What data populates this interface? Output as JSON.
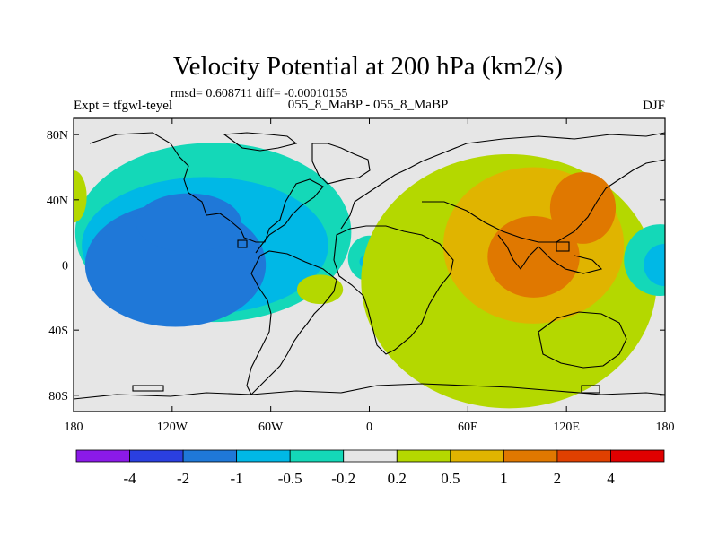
{
  "chart_data": {
    "type": "heatmap",
    "subtype": "filled-contour-map",
    "title": "Velocity Potential at 200 hPa (km2/s)",
    "stats_label": "rmsd= 0.608711 diff= -0.00010155",
    "experiment_label": "Expt = tfgwl-teyel",
    "comparison_label": "055_8_MaBP - 055_8_MaBP",
    "season_label": "DJF",
    "x_range": [
      -180,
      180
    ],
    "y_range": [
      -90,
      90
    ],
    "x_ticks": [
      {
        "value": -180,
        "label": "180"
      },
      {
        "value": -120,
        "label": "120W"
      },
      {
        "value": -60,
        "label": "60W"
      },
      {
        "value": 0,
        "label": "0"
      },
      {
        "value": 60,
        "label": "60E"
      },
      {
        "value": 120,
        "label": "120E"
      },
      {
        "value": 180,
        "label": "180"
      }
    ],
    "y_ticks": [
      {
        "value": 80,
        "label": "80N"
      },
      {
        "value": 40,
        "label": "40N"
      },
      {
        "value": 0,
        "label": "0"
      },
      {
        "value": -40,
        "label": "40S"
      },
      {
        "value": -80,
        "label": "80S"
      }
    ],
    "colorbar": {
      "levels": [
        "-4",
        "-2",
        "-1",
        "-0.5",
        "-0.2",
        "0.2",
        "0.5",
        "1",
        "2",
        "4"
      ],
      "colors": [
        "#8b1ae8",
        "#2a3fe0",
        "#1f78d8",
        "#00b8e6",
        "#14d8b8",
        "#e6e6e6",
        "#b4d800",
        "#e0b400",
        "#e07800",
        "#e04000",
        "#e00000"
      ]
    },
    "regions": [
      {
        "name": "pacific-negative-outer",
        "level_index": 4,
        "lon": -95,
        "lat": 20,
        "rlon": 84,
        "rlat": 55
      },
      {
        "name": "pacific-negative-mid",
        "level_index": 3,
        "lon": -100,
        "lat": 12,
        "rlon": 75,
        "rlat": 42
      },
      {
        "name": "pacific-negative-core",
        "level_index": 2,
        "lon": -118,
        "lat": 0,
        "rlon": 55,
        "rlat": 38
      },
      {
        "name": "pacific-negative-north-core",
        "level_index": 2,
        "lon": -110,
        "lat": 26,
        "rlon": 32,
        "rlat": 18
      },
      {
        "name": "dateline-west-positive",
        "level_index": 6,
        "lon": -180,
        "lat": 42,
        "rlon": 8,
        "rlat": 16
      },
      {
        "name": "south-atlantic-positive",
        "level_index": 6,
        "lon": -30,
        "lat": -15,
        "rlon": 14,
        "rlat": 9
      },
      {
        "name": "africa-negative-outer",
        "level_index": 4,
        "lon": 0,
        "lat": 4,
        "rlon": 13,
        "rlat": 14
      },
      {
        "name": "africa-negative-core",
        "level_index": 3,
        "lon": -2,
        "lat": 2,
        "rlon": 4,
        "rlat": 4
      },
      {
        "name": "indo-pacific-positive-outer",
        "level_index": 6,
        "lon": 85,
        "lat": -10,
        "rlon": 90,
        "rlat": 78
      },
      {
        "name": "indo-pacific-positive-mid",
        "level_index": 7,
        "lon": 100,
        "lat": 12,
        "rlon": 55,
        "rlat": 48
      },
      {
        "name": "indo-pacific-positive-core",
        "level_index": 8,
        "lon": 100,
        "lat": 5,
        "rlon": 28,
        "rlat": 25
      },
      {
        "name": "indo-pacific-positive-core-north",
        "level_index": 8,
        "lon": 130,
        "lat": 35,
        "rlon": 20,
        "rlat": 22
      },
      {
        "name": "east-pacific-negative-outer",
        "level_index": 4,
        "lon": 177,
        "lat": 3,
        "rlon": 22,
        "rlat": 22
      },
      {
        "name": "east-pacific-negative-core",
        "level_index": 3,
        "lon": 180,
        "lat": 0,
        "rlon": 13,
        "rlat": 13
      }
    ]
  }
}
